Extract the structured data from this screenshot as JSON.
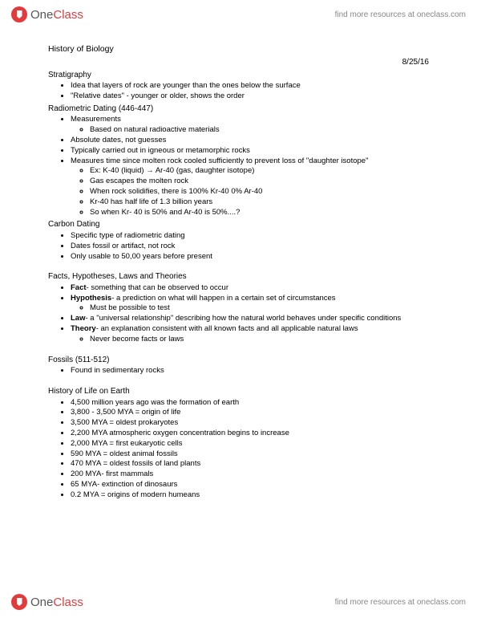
{
  "brand": {
    "name_part1": "One",
    "name_part2": "Class",
    "tagline": "find more resources at oneclass.com"
  },
  "doc": {
    "title": "History of Biology",
    "date": "8/25/16"
  },
  "sections": [
    {
      "heading": "Stratigraphy",
      "items": [
        {
          "text": "Idea that layers of rock are younger than the ones below the surface"
        },
        {
          "text": "\"Relative dates\" - younger or older, shows the order"
        }
      ]
    },
    {
      "heading": "Radiometric Dating (446-447)",
      "items": [
        {
          "text": "Measurements",
          "sub": [
            {
              "text": "Based on natural radioactive materials"
            }
          ]
        },
        {
          "text": "Absolute dates, not guesses"
        },
        {
          "text": "Typically carried out in igneous or metamorphic rocks"
        },
        {
          "text": "Measures time since molten rock cooled sufficiently to prevent loss of \"daughter isotope\"",
          "sub": [
            {
              "text": "Ex: K-40 (liquid) → Ar-40 (gas, daughter isotope)"
            },
            {
              "text": "Gas escapes the molten rock"
            },
            {
              "text": "When rock solidifies, there is 100% Kr-40 0% Ar-40"
            },
            {
              "text": "Kr-40 has half life of 1.3 billion years"
            },
            {
              "text": "So when Kr- 40 is 50% and Ar-40 is 50%....?"
            }
          ]
        }
      ]
    },
    {
      "heading": "Carbon Dating",
      "items": [
        {
          "text": "Specific type of radiometric dating"
        },
        {
          "text": "Dates fossil or artifact, not rock"
        },
        {
          "text": "Only usable to 50,00 years before present"
        }
      ]
    },
    {
      "heading": "Facts, Hypotheses, Laws and Theories",
      "spaced": true,
      "items": [
        {
          "bold": "Fact",
          "rest": "- something that can be observed to occur"
        },
        {
          "bold": "Hypothesis",
          "rest": "- a prediction on what will happen in a certain set of circumstances",
          "sub": [
            {
              "text": "Must be possible to test"
            }
          ]
        },
        {
          "bold": "Law",
          "rest": "- a \"universal relationship\" describing how the natural world behaves under specific conditions"
        },
        {
          "bold": "Theory",
          "rest": "- an explanation consistent with all known facts and all applicable natural laws",
          "sub": [
            {
              "text": "Never become facts or laws"
            }
          ]
        }
      ]
    },
    {
      "heading": "Fossils (511-512)",
      "spaced": true,
      "items": [
        {
          "text": "Found in sedimentary rocks"
        }
      ]
    },
    {
      "heading": "History of Life on Earth",
      "spaced": true,
      "items": [
        {
          "text": "4,500 million years ago was the formation of earth"
        },
        {
          "text": "3,800 - 3,500 MYA = origin of life"
        },
        {
          "text": "3,500 MYA = oldest prokaryotes"
        },
        {
          "text": "2,200 MYA atmospheric oxygen concentration begins to increase"
        },
        {
          "text": "2,000 MYA = first eukaryotic cells"
        },
        {
          "text": "590 MYA = oldest animal fossils"
        },
        {
          "text": "470 MYA = oldest fossils of land plants"
        },
        {
          "text": "200 MYA- first mammals"
        },
        {
          "text": "65 MYA- extinction of dinosaurs"
        },
        {
          "text": "0.2 MYA = origins of modern humeans"
        }
      ]
    }
  ]
}
